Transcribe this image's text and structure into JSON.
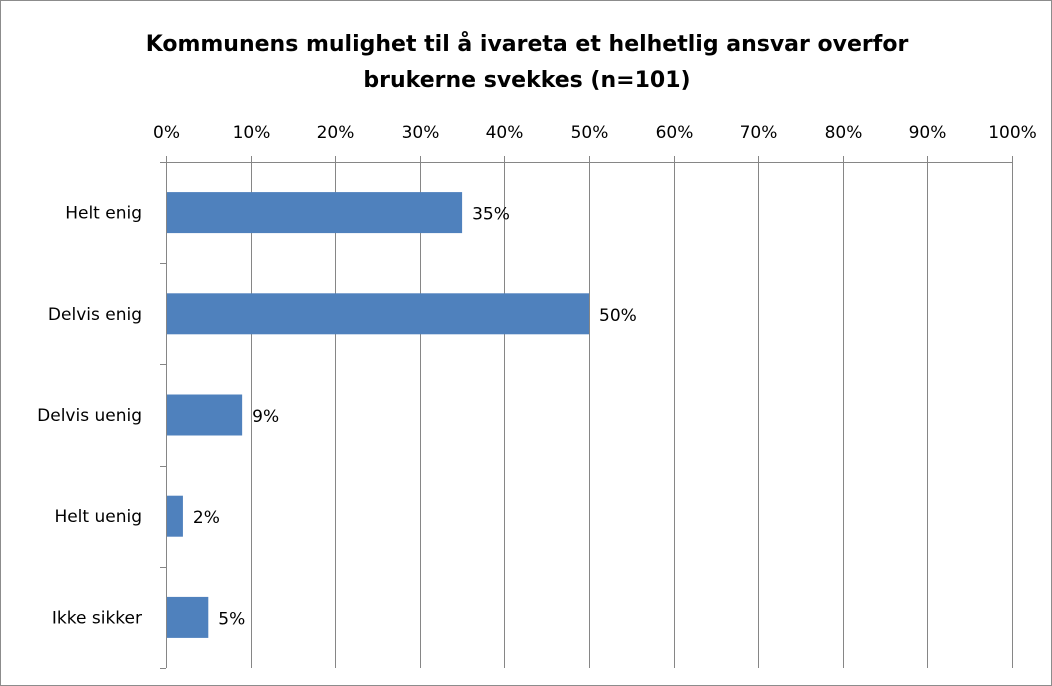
{
  "chart_data": {
    "type": "bar",
    "orientation": "horizontal",
    "title_lines": [
      "Kommunens mulighet til å ivareta et helhetlig ansvar overfor",
      "brukerne svekkes (n=101)"
    ],
    "categories": [
      "Helt enig",
      "Delvis enig",
      "Delvis uenig",
      "Helt uenig",
      "Ikke sikker"
    ],
    "values": [
      35,
      50,
      9,
      2,
      5
    ],
    "data_labels": [
      "35%",
      "50%",
      "9%",
      "2%",
      "5%"
    ],
    "xlim": [
      0,
      100
    ],
    "x_ticks": [
      0,
      10,
      20,
      30,
      40,
      50,
      60,
      70,
      80,
      90,
      100
    ],
    "x_tick_labels": [
      "0%",
      "10%",
      "20%",
      "30%",
      "40%",
      "50%",
      "60%",
      "70%",
      "80%",
      "90%",
      "100%"
    ],
    "x_axis_position": "top",
    "grid": true,
    "legend": "none",
    "bar_color": "#4f81bd",
    "grid_color": "#868686"
  }
}
